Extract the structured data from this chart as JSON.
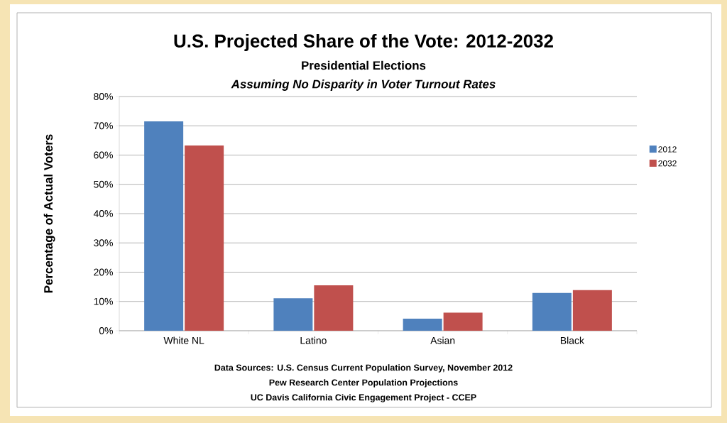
{
  "chart_data": {
    "type": "bar",
    "title": "U.S. Projected Share of the Vote: 2012-2032",
    "subtitle": "Presidential Elections",
    "ylabel": "Percentage of Actual Voters",
    "annotations": [
      "*Assuming No Disparity in Voter Turnout Rates*",
      "Data Sources: U.S. Census Current Population Survey, November 2012",
      "Pew Research Center Population Projections",
      "UC Davis California Civic Engagement Project - CCEP"
    ],
    "categories": [
      "White NL",
      "Latino",
      "Asian",
      "Black"
    ],
    "series": [
      {
        "name": "2012",
        "color": "#4f81bd",
        "values": [
          71.5,
          11.1,
          4.1,
          12.9
        ]
      },
      {
        "name": "2032",
        "color": "#c0504d",
        "values": [
          63.3,
          15.5,
          6.2,
          13.9
        ]
      }
    ],
    "ylim": [
      0,
      80
    ],
    "yticks": [
      {
        "value": 0,
        "label": "0%"
      },
      {
        "value": 10,
        "label": "10%"
      },
      {
        "value": 20,
        "label": "20%"
      },
      {
        "value": 30,
        "label": "30%"
      },
      {
        "value": 40,
        "label": "40%"
      },
      {
        "value": 50,
        "label": "50%"
      },
      {
        "value": 60,
        "label": "60%"
      },
      {
        "value": 70,
        "label": "70%"
      },
      {
        "value": 80,
        "label": "80%"
      }
    ],
    "grid": "y",
    "legend": "right"
  }
}
